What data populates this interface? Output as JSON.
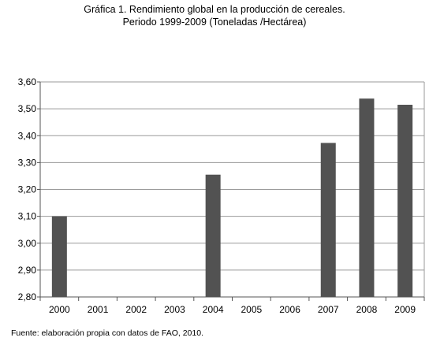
{
  "chart_data": {
    "type": "bar",
    "title": "Gráfica 1. Rendimiento global en la producción de cereales.",
    "subtitle": "Periodo 1999-2009 (Toneladas /Hectárea)",
    "xlabel": "",
    "ylabel": "",
    "categories": [
      "2000",
      "2001",
      "2002",
      "2003",
      "2004",
      "2005",
      "2006",
      "2007",
      "2008",
      "2009"
    ],
    "values": [
      3.1,
      null,
      null,
      null,
      3.255,
      null,
      null,
      3.373,
      3.538,
      3.515
    ],
    "ylim": [
      2.8,
      3.6
    ],
    "yticks": [
      "2,80",
      "2,90",
      "3,00",
      "3,10",
      "3,20",
      "3,30",
      "3,40",
      "3,50",
      "3,60"
    ],
    "grid": true,
    "legend": "none",
    "colors": {
      "bar": "#525252",
      "grid": "#9a9a9a",
      "axis": "#555555"
    }
  },
  "source": "Fuente: elaboración propia con datos de FAO, 2010."
}
